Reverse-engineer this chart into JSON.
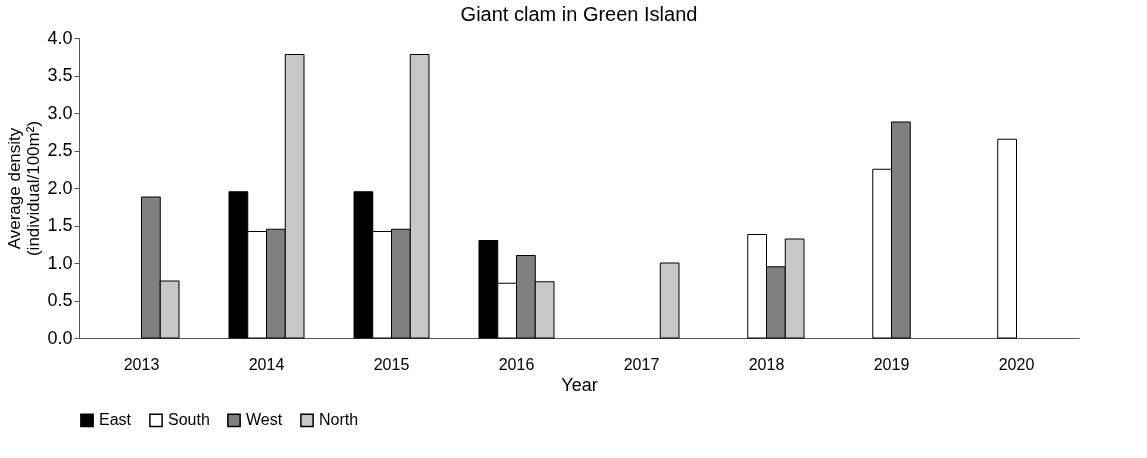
{
  "chart_data": {
    "type": "bar",
    "title": "Giant clam in Green Island",
    "xlabel": "Year",
    "ylabel": "Average density (individual/100m²)",
    "categories": [
      "2013",
      "2014",
      "2015",
      "2016",
      "2017",
      "2018",
      "2019",
      "2020"
    ],
    "series": [
      {
        "name": "East",
        "color": "#000000",
        "values": [
          null,
          1.95,
          1.95,
          1.3,
          null,
          null,
          null,
          null
        ]
      },
      {
        "name": "South",
        "color": "#ffffff",
        "values": [
          null,
          1.42,
          1.42,
          0.73,
          null,
          1.38,
          2.25,
          2.65
        ]
      },
      {
        "name": "West",
        "color": "#808080",
        "values": [
          1.88,
          1.45,
          1.45,
          1.1,
          null,
          0.95,
          2.88,
          null
        ]
      },
      {
        "name": "North",
        "color": "#c8c8c8",
        "values": [
          0.76,
          3.78,
          3.78,
          0.75,
          1.0,
          1.32,
          null,
          null
        ]
      }
    ],
    "ylim": [
      0,
      4
    ],
    "yticks": [
      {
        "value": 0,
        "label": "0.0"
      },
      {
        "value": 0.5,
        "label": "0.5"
      },
      {
        "value": 1,
        "label": "1.0"
      },
      {
        "value": 1.5,
        "label": "1.5"
      },
      {
        "value": 2,
        "label": "2.0"
      },
      {
        "value": 2.5,
        "label": "2.5"
      },
      {
        "value": 3,
        "label": "3.0"
      },
      {
        "value": 3.5,
        "label": "3.5"
      },
      {
        "value": 4,
        "label": "4.0"
      }
    ],
    "grid": false,
    "legend": "bottom"
  }
}
